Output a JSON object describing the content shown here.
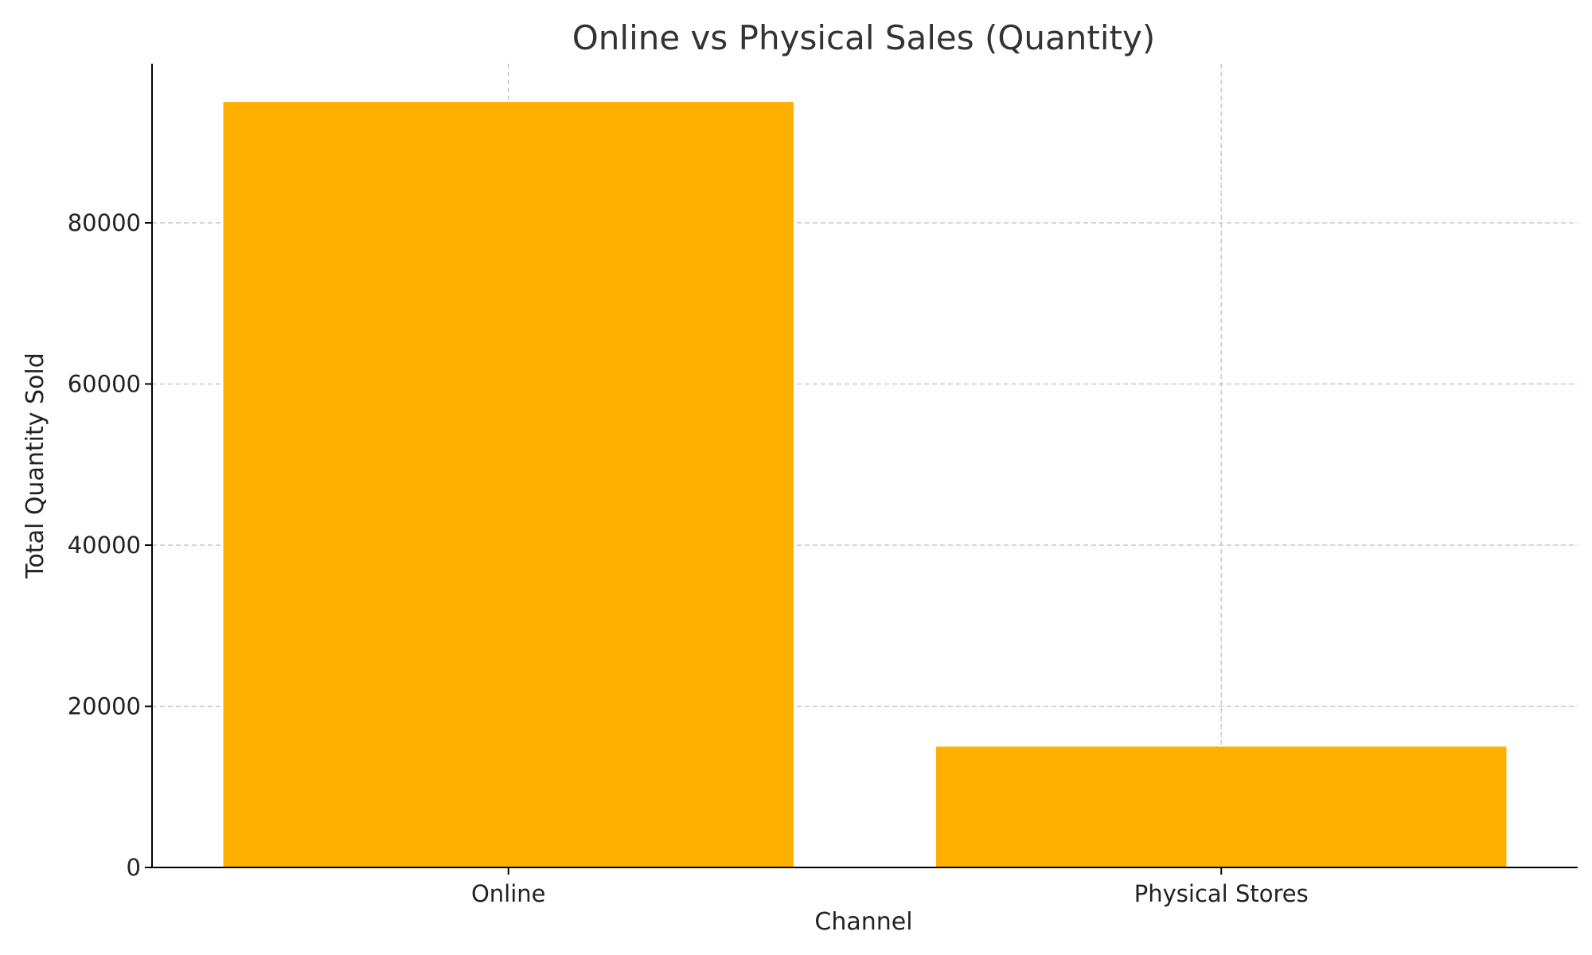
{
  "chart_data": {
    "type": "bar",
    "title": "Online vs Physical Sales (Quantity)",
    "xlabel": "Channel",
    "ylabel": "Total Quantity Sold",
    "categories": [
      "Online",
      "Physical Stores"
    ],
    "values": [
      95000,
      15000
    ],
    "ylim": [
      0,
      99750
    ],
    "yticks": [
      0,
      20000,
      40000,
      60000,
      80000
    ],
    "grid": true,
    "bar_color": "#FFAF00",
    "grid_color": "#c8c8c8"
  }
}
